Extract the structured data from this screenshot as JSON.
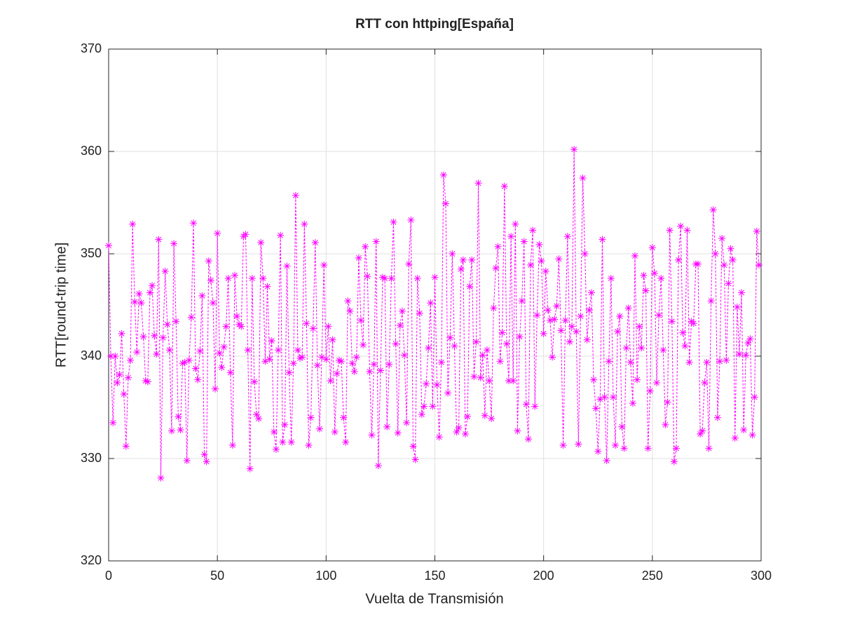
{
  "chart_data": {
    "type": "line",
    "title": "RTT con httping[España]",
    "x_label": "Vuelta de Transmisión",
    "y_label": "RTT[round-trip time]",
    "x": [
      0,
      1,
      2,
      3,
      4,
      5,
      6,
      7,
      8,
      9,
      10,
      11,
      12,
      13,
      14,
      15,
      16,
      17,
      18,
      19,
      20,
      21,
      22,
      23,
      24,
      25,
      26,
      27,
      28,
      29,
      30,
      31,
      32,
      33,
      34,
      35,
      36,
      37,
      38,
      39,
      40,
      41,
      42,
      43,
      44,
      45,
      46,
      47,
      48,
      49,
      50,
      51,
      52,
      53,
      54,
      55,
      56,
      57,
      58,
      59,
      60,
      61,
      62,
      63,
      64,
      65,
      66,
      67,
      68,
      69,
      70,
      71,
      72,
      73,
      74,
      75,
      76,
      77,
      78,
      79,
      80,
      81,
      82,
      83,
      84,
      85,
      86,
      87,
      88,
      89,
      90,
      91,
      92,
      93,
      94,
      95,
      96,
      97,
      98,
      99,
      100,
      101,
      102,
      103,
      104,
      105,
      106,
      107,
      108,
      109,
      110,
      111,
      112,
      113,
      114,
      115,
      116,
      117,
      118,
      119,
      120,
      121,
      122,
      123,
      124,
      125,
      126,
      127,
      128,
      129,
      130,
      131,
      132,
      133,
      134,
      135,
      136,
      137,
      138,
      139,
      140,
      141,
      142,
      143,
      144,
      145,
      146,
      147,
      148,
      149,
      150,
      151,
      152,
      153,
      154,
      155,
      156,
      157,
      158,
      159,
      160,
      161,
      162,
      163,
      164,
      165,
      166,
      167,
      168,
      169,
      170,
      171,
      172,
      173,
      174,
      175,
      176,
      177,
      178,
      179,
      180,
      181,
      182,
      183,
      184,
      185,
      186,
      187,
      188,
      189,
      190,
      191,
      192,
      193,
      194,
      195,
      196,
      197,
      198,
      199,
      200,
      201,
      202,
      203,
      204,
      205,
      206,
      207,
      208,
      209,
      210,
      211,
      212,
      213,
      214,
      215,
      216,
      217,
      218,
      219,
      220,
      221,
      222,
      223,
      224,
      225,
      226,
      227,
      228,
      229,
      230,
      231,
      232,
      233,
      234,
      235,
      236,
      237,
      238,
      239,
      240,
      241,
      242,
      243,
      244,
      245,
      246,
      247,
      248,
      249,
      250,
      251,
      252,
      253,
      254,
      255,
      256,
      257,
      258,
      259,
      260,
      261,
      262,
      263,
      264,
      265,
      266,
      267,
      268,
      269,
      270,
      271,
      272,
      273,
      274,
      275,
      276,
      277,
      278,
      279,
      280,
      281,
      282,
      283,
      284,
      285,
      286,
      287,
      288,
      289,
      290,
      291,
      292,
      293,
      294,
      295,
      296,
      297,
      298,
      299
    ],
    "series": [
      {
        "color": "#ff00ff",
        "values": [
          350.8,
          340,
          333.5,
          340,
          337.4,
          338.2,
          342.2,
          336.3,
          331.2,
          337.9,
          339.6,
          352.9,
          345.3,
          340.4,
          346.1,
          345.2,
          341.9,
          337.6,
          337.5,
          346.2,
          346.9,
          342,
          340.2,
          351.4,
          328.1,
          341.8,
          348.3,
          343.1,
          340.6,
          332.7,
          351,
          343.4,
          334.1,
          332.8,
          339.3,
          339.4,
          329.8,
          339.6,
          343.8,
          353,
          338.8,
          337.7,
          340.5,
          345.9,
          330.4,
          329.7,
          349.3,
          347.4,
          345.2,
          336.8,
          352,
          340.3,
          338.9,
          340.9,
          342.9,
          347.6,
          338.4,
          331.3,
          347.9,
          343.9,
          343.1,
          342.9,
          351.7,
          351.9,
          340.6,
          329,
          347.6,
          337.5,
          334.3,
          333.9,
          351.1,
          347.6,
          339.5,
          346.8,
          339.7,
          341.5,
          332.6,
          330.9,
          340.6,
          351.8,
          331.6,
          333.3,
          348.8,
          338.4,
          331.6,
          339.3,
          355.7,
          340.6,
          339.8,
          339.9,
          352.9,
          343.2,
          331.3,
          334,
          342.7,
          351.1,
          339.1,
          332.9,
          339.9,
          348.9,
          339.7,
          342.9,
          337.6,
          341.6,
          332.6,
          338.3,
          339.6,
          339.5,
          334,
          331.6,
          345.4,
          344.4,
          339.3,
          338.5,
          339.9,
          349.6,
          343.5,
          341.1,
          350.7,
          347.8,
          338.5,
          332.3,
          339.2,
          351.2,
          329.3,
          338.6,
          347.7,
          347.6,
          333.1,
          339.2,
          347.6,
          353.1,
          341.2,
          332.5,
          343,
          344.4,
          340.1,
          333.5,
          349,
          353.3,
          331.2,
          329.9,
          347.6,
          344.2,
          334.3,
          335.1,
          337.3,
          340.8,
          345.2,
          335.1,
          347.7,
          337.2,
          332.1,
          339.4,
          357.7,
          354.9,
          336.4,
          341.8,
          350,
          341,
          332.6,
          333,
          348.5,
          349.4,
          332.4,
          334.1,
          346.8,
          349.4,
          338,
          341.4,
          356.9,
          337.9,
          340.1,
          334.2,
          340.6,
          337.6,
          333.9,
          344.7,
          348.6,
          350.7,
          339.5,
          342.3,
          356.6,
          341.2,
          337.6,
          351.7,
          337.6,
          352.9,
          332.7,
          341.9,
          345.4,
          351.2,
          335.3,
          331.9,
          348.9,
          352.3,
          335.1,
          344,
          350.9,
          349.3,
          342.2,
          348.3,
          344.5,
          343.5,
          339.9,
          343.6,
          344.9,
          349.5,
          342.5,
          331.3,
          343.5,
          351.7,
          341.4,
          342.9,
          360.2,
          342.4,
          331.4,
          343.9,
          357.4,
          350,
          341.6,
          344.5,
          346.2,
          337.7,
          334.9,
          330.7,
          335.8,
          351.4,
          336,
          329.8,
          339.5,
          347.6,
          336,
          331.3,
          342.4,
          343.9,
          333.1,
          331,
          340.8,
          344.7,
          339.4,
          335.4,
          349.8,
          337.7,
          342.9,
          340.8,
          347.9,
          346.4,
          331,
          336.6,
          350.6,
          348.1,
          337.4,
          344,
          347.6,
          340.6,
          333.3,
          335.5,
          352.3,
          343.4,
          329.7,
          331,
          349.4,
          352.7,
          342.3,
          341,
          352.3,
          339.4,
          343.4,
          343.2,
          349,
          349,
          332.4,
          332.7,
          337.4,
          339.4,
          331,
          345.4,
          354.3,
          350,
          334,
          339.5,
          351.5,
          348.9,
          339.6,
          347.1,
          350.5,
          349.4,
          332,
          344.8,
          340.2,
          346.2,
          332.8,
          340.1,
          341.3,
          341.7,
          332.3,
          336,
          352.2,
          348.9
        ]
      }
    ],
    "xlim": [
      0,
      300
    ],
    "ylim": [
      320,
      370
    ],
    "xticks": [
      0,
      50,
      100,
      150,
      200,
      250,
      300
    ],
    "yticks": [
      320,
      330,
      340,
      350,
      360,
      370
    ],
    "grid": true
  }
}
